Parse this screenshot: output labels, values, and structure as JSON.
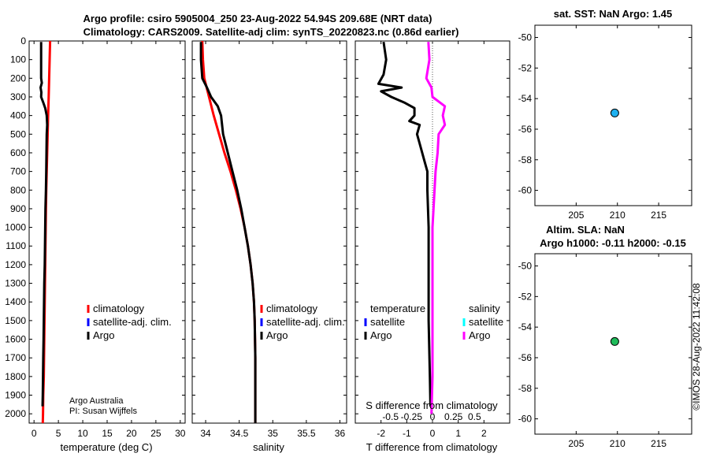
{
  "titles": {
    "line1": "Argo profile: csiro 5905004_250 23-Aug-2022 54.94S 209.68E (NRT data)",
    "line2": "Climatology: CARS2009. Satellite-adj clim: synTS_20220823.nc (0.86d earlier)",
    "sst": "sat. SST: NaN Argo: 1.45",
    "sla1": "Altim. SLA: NaN",
    "sla2": "Argo h1000: -0.11 h2000: -0.15"
  },
  "side_label": "©IMOS 28-Aug-2022 11:42:08",
  "credit": {
    "line1": "Argo Australia",
    "line2": "PI: Susan Wijffels"
  },
  "colors": {
    "red": "#ff0000",
    "blue": "#0000ff",
    "black": "#000000",
    "magenta": "#ff00ff",
    "cyan": "#00ffff",
    "sst_marker": "#1fb1f0",
    "sla_marker": "#1fbb5a"
  },
  "chart_data": [
    {
      "type": "line",
      "name": "temperature",
      "xlabel": "temperature (deg C)",
      "ylabel": "",
      "xlim": [
        -1,
        31
      ],
      "ylim": [
        0,
        2050
      ],
      "xticks": [
        0,
        5,
        10,
        15,
        20,
        25,
        30
      ],
      "yticks": [
        0,
        100,
        200,
        300,
        400,
        500,
        600,
        700,
        800,
        900,
        1000,
        1100,
        1200,
        1300,
        1400,
        1500,
        1600,
        1700,
        1800,
        1900,
        2000
      ],
      "legend": [
        {
          "label": "climatology",
          "color": "#ff0000"
        },
        {
          "label": "satellite-adj. clim.",
          "color": "#0000ff"
        },
        {
          "label": "Argo",
          "color": "#000000"
        }
      ],
      "series": [
        {
          "name": "climatology",
          "color": "#ff0000",
          "points": [
            [
              3.3,
              0
            ],
            [
              3.2,
              100
            ],
            [
              3.1,
              200
            ],
            [
              3.0,
              300
            ],
            [
              2.9,
              400
            ],
            [
              2.8,
              500
            ],
            [
              2.7,
              600
            ],
            [
              2.6,
              700
            ],
            [
              2.5,
              800
            ],
            [
              2.45,
              900
            ],
            [
              2.4,
              1000
            ],
            [
              2.35,
              1100
            ],
            [
              2.3,
              1200
            ],
            [
              2.25,
              1300
            ],
            [
              2.2,
              1400
            ],
            [
              2.15,
              1500
            ],
            [
              2.1,
              1600
            ],
            [
              2.05,
              1700
            ],
            [
              2.0,
              1800
            ],
            [
              1.9,
              1900
            ],
            [
              1.85,
              2000
            ],
            [
              1.8,
              2050
            ]
          ]
        },
        {
          "name": "Argo",
          "color": "#000000",
          "points": [
            [
              1.45,
              5
            ],
            [
              1.45,
              100
            ],
            [
              1.45,
              200
            ],
            [
              1.6,
              225
            ],
            [
              1.35,
              250
            ],
            [
              1.5,
              275
            ],
            [
              1.45,
              300
            ],
            [
              1.9,
              330
            ],
            [
              2.3,
              360
            ],
            [
              2.6,
              400
            ],
            [
              2.7,
              450
            ],
            [
              2.6,
              500
            ],
            [
              2.55,
              600
            ],
            [
              2.5,
              700
            ],
            [
              2.45,
              800
            ],
            [
              2.35,
              900
            ],
            [
              2.3,
              1000
            ],
            [
              2.25,
              1100
            ],
            [
              2.2,
              1200
            ],
            [
              2.1,
              1300
            ],
            [
              2.05,
              1400
            ],
            [
              2.0,
              1500
            ],
            [
              1.95,
              1600
            ],
            [
              1.9,
              1700
            ],
            [
              1.85,
              1800
            ],
            [
              1.8,
              1900
            ],
            [
              1.75,
              1960
            ]
          ]
        }
      ]
    },
    {
      "type": "line",
      "name": "salinity",
      "xlabel": "salinity",
      "xlim": [
        33.8,
        36.1
      ],
      "ylim": [
        0,
        2050
      ],
      "xticks": [
        34,
        34.5,
        35,
        35.5,
        36
      ],
      "legend": [
        {
          "label": "climatology",
          "color": "#ff0000"
        },
        {
          "label": "satellite-adj. clim.",
          "color": "#0000ff"
        },
        {
          "label": "Argo",
          "color": "#000000"
        }
      ],
      "series": [
        {
          "name": "climatology",
          "color": "#ff0000",
          "points": [
            [
              33.95,
              0
            ],
            [
              33.96,
              100
            ],
            [
              33.98,
              200
            ],
            [
              34.05,
              300
            ],
            [
              34.12,
              400
            ],
            [
              34.2,
              500
            ],
            [
              34.28,
              600
            ],
            [
              34.37,
              700
            ],
            [
              34.45,
              800
            ],
            [
              34.52,
              900
            ],
            [
              34.58,
              1000
            ],
            [
              34.63,
              1100
            ],
            [
              34.67,
              1200
            ],
            [
              34.7,
              1300
            ],
            [
              34.72,
              1400
            ],
            [
              34.73,
              1500
            ],
            [
              34.735,
              1600
            ],
            [
              34.74,
              1700
            ],
            [
              34.74,
              1800
            ],
            [
              34.74,
              1900
            ],
            [
              34.74,
              2000
            ],
            [
              34.74,
              2050
            ]
          ]
        },
        {
          "name": "Argo",
          "color": "#000000",
          "points": [
            [
              33.93,
              5
            ],
            [
              33.93,
              100
            ],
            [
              33.95,
              200
            ],
            [
              34.02,
              250
            ],
            [
              34.08,
              300
            ],
            [
              34.18,
              350
            ],
            [
              34.23,
              400
            ],
            [
              34.26,
              500
            ],
            [
              34.33,
              600
            ],
            [
              34.4,
              700
            ],
            [
              34.47,
              800
            ],
            [
              34.53,
              900
            ],
            [
              34.58,
              1000
            ],
            [
              34.63,
              1100
            ],
            [
              34.67,
              1200
            ],
            [
              34.7,
              1300
            ],
            [
              34.72,
              1400
            ],
            [
              34.73,
              1500
            ],
            [
              34.735,
              1600
            ],
            [
              34.74,
              1700
            ],
            [
              34.74,
              1800
            ],
            [
              34.74,
              1900
            ],
            [
              34.74,
              2000
            ],
            [
              34.74,
              2050
            ]
          ]
        }
      ]
    },
    {
      "type": "line",
      "name": "differences",
      "xlabel": "T difference from climatology",
      "xlabel_top": "S difference from climatology",
      "xlim": [
        -3,
        3
      ],
      "ylim": [
        0,
        2050
      ],
      "xticks": [
        -2,
        -1,
        0,
        1,
        2
      ],
      "xtick_labels": [
        "-2",
        "-1",
        "0",
        "1",
        "2"
      ],
      "xticks_top_labels": [
        "-0.5",
        "-0.25",
        "0",
        "0.25",
        "0.5"
      ],
      "legend": [
        {
          "label": "temperature",
          "color": ""
        },
        {
          "label": "satellite",
          "color": "#0000ff"
        },
        {
          "label": "Argo",
          "color": "#000000"
        },
        {
          "label": "salinity",
          "color": ""
        },
        {
          "label": "satellite",
          "color": "#00ffff"
        },
        {
          "label": "Argo",
          "color": "#ff00ff"
        }
      ],
      "series": [
        {
          "name": "T Argo - clim",
          "color": "#000000",
          "points": [
            [
              -1.9,
              5
            ],
            [
              -1.8,
              100
            ],
            [
              -1.9,
              180
            ],
            [
              -2.1,
              230
            ],
            [
              -1.2,
              250
            ],
            [
              -2.0,
              270
            ],
            [
              -1.6,
              300
            ],
            [
              -1.1,
              330
            ],
            [
              -0.7,
              360
            ],
            [
              -0.7,
              400
            ],
            [
              -0.9,
              430
            ],
            [
              -0.5,
              450
            ],
            [
              -0.6,
              500
            ],
            [
              -0.5,
              550
            ],
            [
              -0.3,
              650
            ],
            [
              -0.2,
              700
            ],
            [
              -0.2,
              800
            ],
            [
              -0.15,
              1000
            ],
            [
              -0.15,
              1500
            ],
            [
              -0.1,
              1800
            ],
            [
              -0.08,
              1960
            ]
          ]
        },
        {
          "name": "S Argo - clim",
          "color": "#ff00ff",
          "points": [
            [
              -0.04,
              5
            ],
            [
              -0.03,
              100
            ],
            [
              -0.06,
              200
            ],
            [
              -0.01,
              250
            ],
            [
              0.0,
              300
            ],
            [
              0.12,
              350
            ],
            [
              0.1,
              400
            ],
            [
              0.12,
              450
            ],
            [
              0.06,
              500
            ],
            [
              0.05,
              600
            ],
            [
              0.03,
              700
            ],
            [
              0.02,
              800
            ],
            [
              0.01,
              900
            ],
            [
              0.0,
              1000
            ],
            [
              0.0,
              1200
            ],
            [
              0.0,
              1500
            ],
            [
              0.0,
              1800
            ],
            [
              -0.01,
              2000
            ]
          ]
        }
      ]
    },
    {
      "type": "scatter",
      "name": "sst_map",
      "title": "sat. SST: NaN Argo: 1.45",
      "xlim": [
        200,
        219
      ],
      "ylim": [
        -61,
        -49.2
      ],
      "xticks": [
        205,
        210,
        215
      ],
      "yticks": [
        -50,
        -52,
        -54,
        -56,
        -58,
        -60
      ],
      "points": [
        {
          "x": 209.68,
          "y": -54.94
        }
      ]
    },
    {
      "type": "scatter",
      "name": "sla_map",
      "title": "Altim. SLA: NaN",
      "xlim": [
        200,
        219
      ],
      "ylim": [
        -61,
        -49.2
      ],
      "xticks": [
        205,
        210,
        215
      ],
      "yticks": [
        -50,
        -52,
        -54,
        -56,
        -58,
        -60
      ],
      "points": [
        {
          "x": 209.68,
          "y": -54.94
        }
      ]
    }
  ]
}
